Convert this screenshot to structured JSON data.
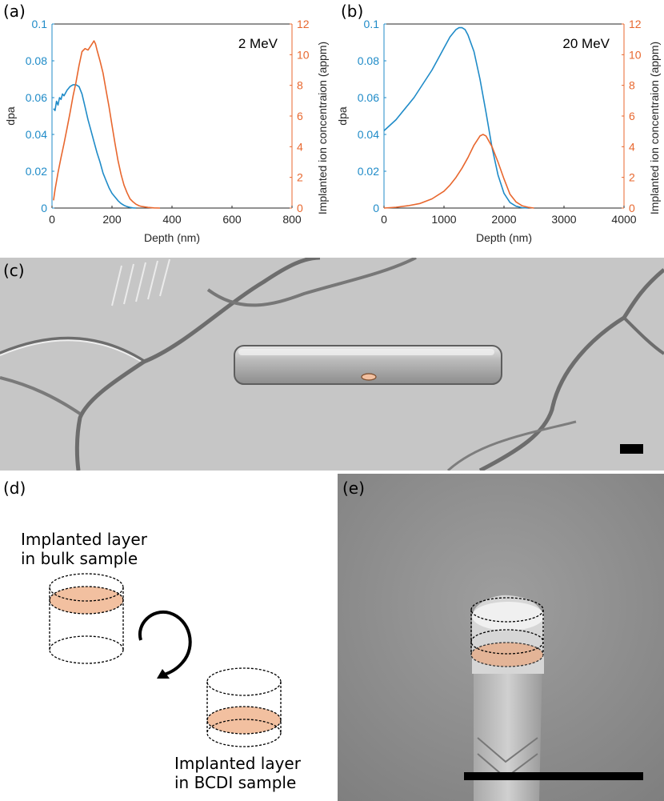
{
  "figure": {
    "labels": [
      "(a)",
      "(b)",
      "(c)",
      "(d)",
      "(e)"
    ],
    "diagram": {
      "top_caption": [
        "Implanted layer",
        "in bulk sample"
      ],
      "bottom_caption": [
        "Implanted layer",
        "in BCDI sample"
      ]
    },
    "colors": {
      "dpa": "#1f8bc8",
      "ion": "#e8672e",
      "implant_fill": "#f2c0a0"
    }
  },
  "chart_data": [
    {
      "type": "line",
      "annotation": "2 MeV",
      "xlabel": "Depth (nm)",
      "ylabel": "dpa",
      "y2label": "Implanted ion concentraion (appm)",
      "xlim": [
        0,
        800
      ],
      "ylim": [
        0,
        0.1
      ],
      "y2lim": [
        0,
        12
      ],
      "xticks": [
        0,
        200,
        400,
        600,
        800
      ],
      "yticks": [
        "0",
        "0.02",
        "0.04",
        "0.06",
        "0.08",
        "0.1"
      ],
      "y2ticks": [
        "0",
        "2",
        "4",
        "6",
        "8",
        "10",
        "12"
      ],
      "series": [
        {
          "axis": "left",
          "x": [
            5,
            10,
            15,
            20,
            25,
            30,
            35,
            40,
            50,
            60,
            70,
            80,
            90,
            100,
            110,
            120,
            130,
            140,
            150,
            160,
            170,
            180,
            190,
            200,
            210,
            220,
            230,
            240,
            250,
            260,
            270,
            280
          ],
          "y": [
            0.054,
            0.053,
            0.058,
            0.056,
            0.06,
            0.059,
            0.062,
            0.061,
            0.064,
            0.066,
            0.067,
            0.067,
            0.066,
            0.062,
            0.055,
            0.048,
            0.042,
            0.036,
            0.03,
            0.025,
            0.019,
            0.015,
            0.011,
            0.008,
            0.006,
            0.004,
            0.0025,
            0.0015,
            0.0008,
            0.0004,
            0.0001,
            0
          ]
        },
        {
          "axis": "right",
          "x": [
            5,
            10,
            20,
            30,
            40,
            50,
            60,
            70,
            80,
            90,
            100,
            110,
            120,
            130,
            140,
            145,
            150,
            160,
            170,
            180,
            190,
            200,
            210,
            220,
            230,
            240,
            250,
            260,
            270,
            280,
            290,
            300,
            320,
            340,
            360
          ],
          "y": [
            0.5,
            1.2,
            2.3,
            3.3,
            4.2,
            5.2,
            6.2,
            7.3,
            8.2,
            9.3,
            10.2,
            10.4,
            10.3,
            10.6,
            10.9,
            10.7,
            10.3,
            9.6,
            8.8,
            7.7,
            6.6,
            5.4,
            4.2,
            3.1,
            2.2,
            1.5,
            1.0,
            0.6,
            0.4,
            0.25,
            0.15,
            0.1,
            0.04,
            0.01,
            0
          ]
        }
      ]
    },
    {
      "type": "line",
      "annotation": "20 MeV",
      "xlabel": "Depth (nm)",
      "ylabel": "dpa",
      "y2label": "Implanted ion concentraion (appm)",
      "xlim": [
        0,
        4000
      ],
      "ylim": [
        0,
        0.1
      ],
      "y2lim": [
        0,
        12
      ],
      "xticks": [
        0,
        1000,
        2000,
        3000,
        4000
      ],
      "yticks": [
        "0",
        "0.02",
        "0.04",
        "0.06",
        "0.08",
        "0.1"
      ],
      "y2ticks": [
        "0",
        "2",
        "4",
        "6",
        "8",
        "10",
        "12"
      ],
      "series": [
        {
          "axis": "left",
          "x": [
            0,
            100,
            200,
            300,
            400,
            500,
            600,
            700,
            800,
            900,
            1000,
            1100,
            1200,
            1250,
            1300,
            1350,
            1400,
            1500,
            1600,
            1700,
            1800,
            1900,
            2000,
            2100,
            2200,
            2300,
            2400
          ],
          "y": [
            0.042,
            0.045,
            0.048,
            0.052,
            0.056,
            0.06,
            0.065,
            0.07,
            0.075,
            0.081,
            0.087,
            0.093,
            0.097,
            0.098,
            0.098,
            0.097,
            0.094,
            0.085,
            0.07,
            0.052,
            0.033,
            0.018,
            0.008,
            0.003,
            0.001,
            0.0002,
            0
          ]
        },
        {
          "axis": "right",
          "x": [
            0,
            200,
            400,
            600,
            800,
            1000,
            1100,
            1200,
            1300,
            1400,
            1500,
            1600,
            1650,
            1700,
            1800,
            1900,
            2000,
            2100,
            2200,
            2300,
            2400,
            2500
          ],
          "y": [
            0,
            0.05,
            0.15,
            0.3,
            0.6,
            1.1,
            1.5,
            2.0,
            2.6,
            3.3,
            4.1,
            4.7,
            4.8,
            4.7,
            4.0,
            3.0,
            1.9,
            0.9,
            0.4,
            0.15,
            0.05,
            0
          ]
        }
      ]
    }
  ]
}
